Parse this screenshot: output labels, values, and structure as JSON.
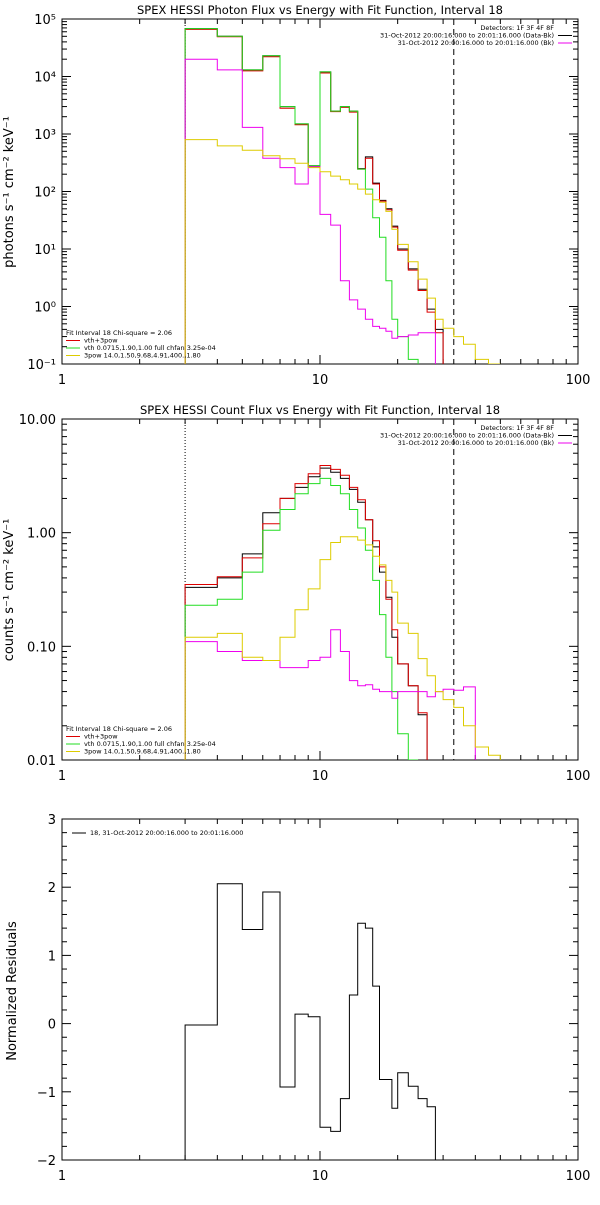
{
  "chart_data": [
    {
      "type": "line",
      "title": "SPEX HESSI Photon Flux vs Energy with Fit Function, Interval 18",
      "ylabel": "photons s⁻¹ cm⁻² keV⁻¹",
      "xlabel": "",
      "x_scale": "log",
      "y_scale": "log",
      "xlim": [
        1,
        100
      ],
      "ylim": [
        0.1,
        100000
      ],
      "xticks": [
        "1",
        "10",
        "100"
      ],
      "yticks": [
        "10⁻¹",
        "10⁰",
        "10¹",
        "10²",
        "10³",
        "10⁴",
        "10⁵"
      ],
      "legend_topright": [
        "Detectors: 1F 3F 4F 8F",
        "31-Oct-2012 20:00:16.000 to 20:01:16.000 (Data-Bk)",
        "31-Oct-2012 20:00:16.000 to 20:01:16.000 (Bk)"
      ],
      "legend_bottomleft": [
        "Fit Interval 18   Chi-square = 2.06",
        "vth+3pow",
        "vth 0.0715,1.90,1.00  full chfan 3.25e-04",
        "3pow 14.0,1.50,9.68,4.91,400.,1.80"
      ],
      "vlines": {
        "dotted": 3.0,
        "dashed": 33.0
      },
      "edges": [
        3,
        4,
        5,
        6,
        7,
        8,
        9,
        10,
        11,
        12,
        13,
        14,
        15,
        16,
        17,
        18,
        19,
        20,
        22,
        24,
        26,
        28,
        30,
        33,
        36,
        40,
        45,
        50
      ],
      "series": [
        {
          "color": "#000000",
          "values": [
            68000,
            50000,
            13000,
            23000,
            3000,
            1500,
            280,
            12000,
            2500,
            3000,
            2500,
            250,
            400,
            140,
            70,
            50,
            25,
            10,
            4.5,
            2,
            0.9,
            0.4
          ]
        },
        {
          "color": "#dd0000",
          "values": [
            66000,
            49000,
            12500,
            22000,
            2800,
            1450,
            270,
            11500,
            2450,
            2900,
            2400,
            245,
            380,
            135,
            68,
            48,
            24,
            9.5,
            4.3,
            1.9,
            0.8,
            0.35
          ]
        },
        {
          "color": "#22dd22",
          "values": [
            68000,
            50000,
            13000,
            23000,
            3000,
            1500,
            280,
            12000,
            2500,
            3000,
            2500,
            245,
            110,
            35,
            16,
            2.8,
            0.6,
            0.3,
            0.12
          ]
        },
        {
          "color": "#ee00ee",
          "values": [
            20000,
            13000,
            1300,
            380,
            260,
            135,
            270,
            40,
            26,
            2.8,
            1.3,
            0.9,
            0.6,
            0.45,
            0.42,
            0.37,
            0.28,
            0.3,
            0.32,
            0.35,
            0.35
          ]
        },
        {
          "color": "#ddcc00",
          "values": [
            800,
            620,
            520,
            420,
            370,
            310,
            260,
            220,
            185,
            160,
            135,
            110,
            90,
            72,
            65,
            45,
            22,
            12,
            6,
            3,
            1.4,
            0.6,
            0.42,
            0.3,
            0.22,
            0.12,
            0.1
          ]
        }
      ]
    },
    {
      "type": "line",
      "title": "SPEX HESSI Count Flux vs Energy with Fit Function, Interval 18",
      "ylabel": "counts s⁻¹ cm⁻² keV⁻¹",
      "xlabel": "",
      "x_scale": "log",
      "y_scale": "log",
      "xlim": [
        1,
        100
      ],
      "ylim": [
        0.01,
        10
      ],
      "xticks": [
        "1",
        "10",
        "100"
      ],
      "yticks": [
        "0.01",
        "0.10",
        "1.00",
        "10.00"
      ],
      "legend_topright": [
        "Detectors: 1F 3F 4F 8F",
        "31-Oct-2012 20:00:16.000 to 20:01:16.000 (Data-Bk)",
        "31-Oct-2012 20:00:16.000 to 20:01:16.000 (Bk)"
      ],
      "legend_bottomleft": [
        "Fit Interval 18   Chi-square = 2.06",
        "vth+3pow",
        "vth 0.0715,1.90,1.00  full chfan 3.25e-04",
        "3pow 14.0,1.50,9.68,4.91,400.,1.80"
      ],
      "vlines": {
        "dotted": 3.0,
        "dashed": 33.0
      },
      "edges": [
        3,
        4,
        5,
        6,
        7,
        8,
        9,
        10,
        11,
        12,
        13,
        14,
        15,
        16,
        17,
        18,
        19,
        20,
        22,
        24,
        26,
        28,
        30,
        33,
        36,
        40,
        45,
        50
      ],
      "series": [
        {
          "color": "#000000",
          "values": [
            0.33,
            0.4,
            0.65,
            1.5,
            2.0,
            2.5,
            3.1,
            3.7,
            3.4,
            3.0,
            2.4,
            1.85,
            1.3,
            0.75,
            0.45,
            0.27,
            0.12,
            0.07,
            0.045,
            0.025
          ]
        },
        {
          "color": "#dd0000",
          "values": [
            0.35,
            0.41,
            0.6,
            1.2,
            2.0,
            2.7,
            3.3,
            3.9,
            3.6,
            3.2,
            2.5,
            1.95,
            1.3,
            0.85,
            0.5,
            0.26,
            0.14,
            0.07,
            0.045,
            0.026
          ]
        },
        {
          "color": "#22dd22",
          "values": [
            0.23,
            0.26,
            0.45,
            1.05,
            1.6,
            2.2,
            2.7,
            3.0,
            2.6,
            2.2,
            1.6,
            1.1,
            0.7,
            0.38,
            0.19,
            0.08,
            0.04,
            0.017,
            0.01
          ]
        },
        {
          "color": "#ee00ee",
          "values": [
            0.11,
            0.09,
            0.075,
            0.075,
            0.065,
            0.065,
            0.075,
            0.08,
            0.14,
            0.09,
            0.05,
            0.045,
            0.046,
            0.042,
            0.04,
            0.04,
            0.035,
            0.04,
            0.04,
            0.04,
            0.036,
            0.04,
            0.042,
            0.041,
            0.044
          ]
        },
        {
          "color": "#ddcc00",
          "values": [
            0.12,
            0.13,
            0.08,
            0.075,
            0.12,
            0.21,
            0.32,
            0.58,
            0.82,
            0.92,
            0.92,
            0.86,
            0.78,
            0.62,
            0.52,
            0.38,
            0.3,
            0.16,
            0.13,
            0.078,
            0.055,
            0.04,
            0.034,
            0.029,
            0.02,
            0.013,
            0.011
          ]
        }
      ]
    },
    {
      "type": "line",
      "title": "",
      "ylabel": "Normalized Residuals",
      "xlabel": "",
      "x_scale": "log",
      "y_scale": "linear",
      "xlim": [
        1,
        100
      ],
      "ylim": [
        -2,
        3
      ],
      "xticks": [
        "1",
        "10",
        "100"
      ],
      "yticks": [
        "−2",
        "−1",
        "0",
        "1",
        "2",
        "3"
      ],
      "legend_topleft": [
        "18, 31-Oct-2012 20:00:16.000 to 20:01:16.000"
      ],
      "edges": [
        3,
        4,
        5,
        6,
        7,
        8,
        9,
        10,
        11,
        12,
        13,
        14,
        15,
        16,
        17,
        18,
        19,
        20,
        22,
        24,
        26,
        28,
        30,
        33
      ],
      "series": [
        {
          "color": "#000000",
          "values": [
            -0.02,
            2.05,
            1.38,
            1.93,
            -0.93,
            0.14,
            0.1,
            -1.52,
            -1.58,
            -1.1,
            0.42,
            1.47,
            1.4,
            0.55,
            -0.82,
            -0.82,
            -1.24,
            -0.72,
            -0.92,
            -1.1,
            -1.22,
            -2.0
          ]
        }
      ]
    }
  ]
}
